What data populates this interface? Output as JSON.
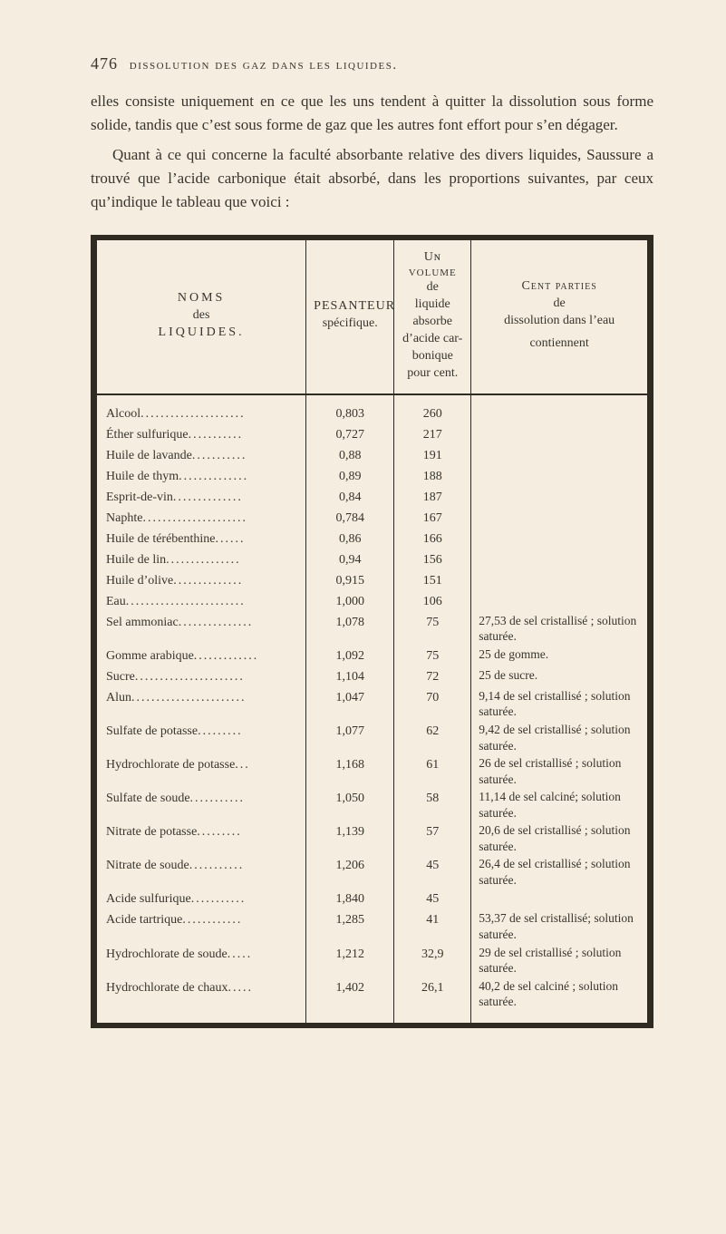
{
  "page_number": "476",
  "running_head_caps": "DISSOLUTION DES GAZ DANS LES LIQUIDES.",
  "paragraph1": "elles consiste uniquement en ce que les uns tendent à quitter la dissolution sous forme solide, tandis que c’est sous forme de gaz que les autres font effort pour s’en dégager.",
  "paragraph2": "Quant à ce qui concerne la faculté absorbante relative des divers liquides, Saussure a trouvé que l’acide carbonique était absorbé, dans les proportions suivantes, par ceux qu’indique le tableau que voici :",
  "table": {
    "headers": {
      "col1_line1": "NOMS",
      "col1_line2": "des",
      "col1_line3": "LIQUIDES.",
      "col2_line1": "PESANTEUR",
      "col2_line2": "spécifique.",
      "col3_line1": "Uɴ",
      "col3_line2": "VOLUME",
      "col3_line3": "de",
      "col3_line4": "liquide",
      "col3_line5": "absorbe",
      "col3_line6": "d’acide car-",
      "col3_line7": "bonique",
      "col3_line8": "pour cent.",
      "col4_line1": "Cent parties",
      "col4_line2": "de",
      "col4_line3": "dissolution dans l’eau",
      "col4_line4": "contiennent"
    },
    "rows": [
      {
        "name": "Alcool",
        "sg": "0,803",
        "vol": "260",
        "note": ""
      },
      {
        "name": "Éther sulfurique",
        "sg": "0,727",
        "vol": "217",
        "note": ""
      },
      {
        "name": "Huile de lavande",
        "sg": "0,88",
        "vol": "191",
        "note": ""
      },
      {
        "name": "Huile de thym",
        "sg": "0,89",
        "vol": "188",
        "note": ""
      },
      {
        "name": "Esprit-de-vin",
        "sg": "0,84",
        "vol": "187",
        "note": ""
      },
      {
        "name": "Naphte",
        "sg": "0,784",
        "vol": "167",
        "note": ""
      },
      {
        "name": "Huile de térébenthine",
        "sg": "0,86",
        "vol": "166",
        "note": ""
      },
      {
        "name": "Huile de lin",
        "sg": "0,94",
        "vol": "156",
        "note": ""
      },
      {
        "name": "Huile d’olive",
        "sg": "0,915",
        "vol": "151",
        "note": ""
      },
      {
        "name": "Eau",
        "sg": "1,000",
        "vol": "106",
        "note": ""
      },
      {
        "name": "Sel ammoniac",
        "sg": "1,078",
        "vol": "75",
        "note": "27,53 de sel cristallisé ; solution saturée."
      },
      {
        "name": "Gomme arabique",
        "sg": "1,092",
        "vol": "75",
        "note": "25 de gomme."
      },
      {
        "name": "Sucre",
        "sg": "1,104",
        "vol": "72",
        "note": "25 de sucre."
      },
      {
        "name": "Alun",
        "sg": "1,047",
        "vol": "70",
        "note": "9,14 de sel cristallisé ; solution saturée."
      },
      {
        "name": "Sulfate de potasse",
        "sg": "1,077",
        "vol": "62",
        "note": "9,42 de sel cristallisé ; solution saturée."
      },
      {
        "name": "Hydrochlorate de potasse",
        "sg": "1,168",
        "vol": "61",
        "note": "26 de sel cristallisé ; solution saturée."
      },
      {
        "name": "Sulfate de soude",
        "sg": "1,050",
        "vol": "58",
        "note": "11,14 de sel calciné; solution saturée."
      },
      {
        "name": "Nitrate de potasse",
        "sg": "1,139",
        "vol": "57",
        "note": "20,6 de sel cristallisé ; solution saturée."
      },
      {
        "name": "Nitrate de soude",
        "sg": "1,206",
        "vol": "45",
        "note": "26,4 de sel cristallisé ; solution saturée."
      },
      {
        "name": "Acide sulfurique",
        "sg": "1,840",
        "vol": "45",
        "note": ""
      },
      {
        "name": "Acide tartrique",
        "sg": "1,285",
        "vol": "41",
        "note": "53,37 de sel cristallisé; solution saturée."
      },
      {
        "name": "Hydrochlorate de soude",
        "sg": "1,212",
        "vol": "32,9",
        "note": "29 de sel cristallisé ; solution saturée."
      },
      {
        "name": "Hydrochlorate de chaux",
        "sg": "1,402",
        "vol": "26,1",
        "note": "40,2 de sel calciné ; solution saturée."
      }
    ],
    "name_col_width_chars": 27,
    "colors": {
      "page_bg": "#f4ede0",
      "ink": "#3a342a",
      "rule": "#2f2a22"
    },
    "fonts": {
      "body_family": "Georgia, 'Times New Roman', serif",
      "body_size_pt": 13,
      "table_size_pt": 11
    }
  }
}
